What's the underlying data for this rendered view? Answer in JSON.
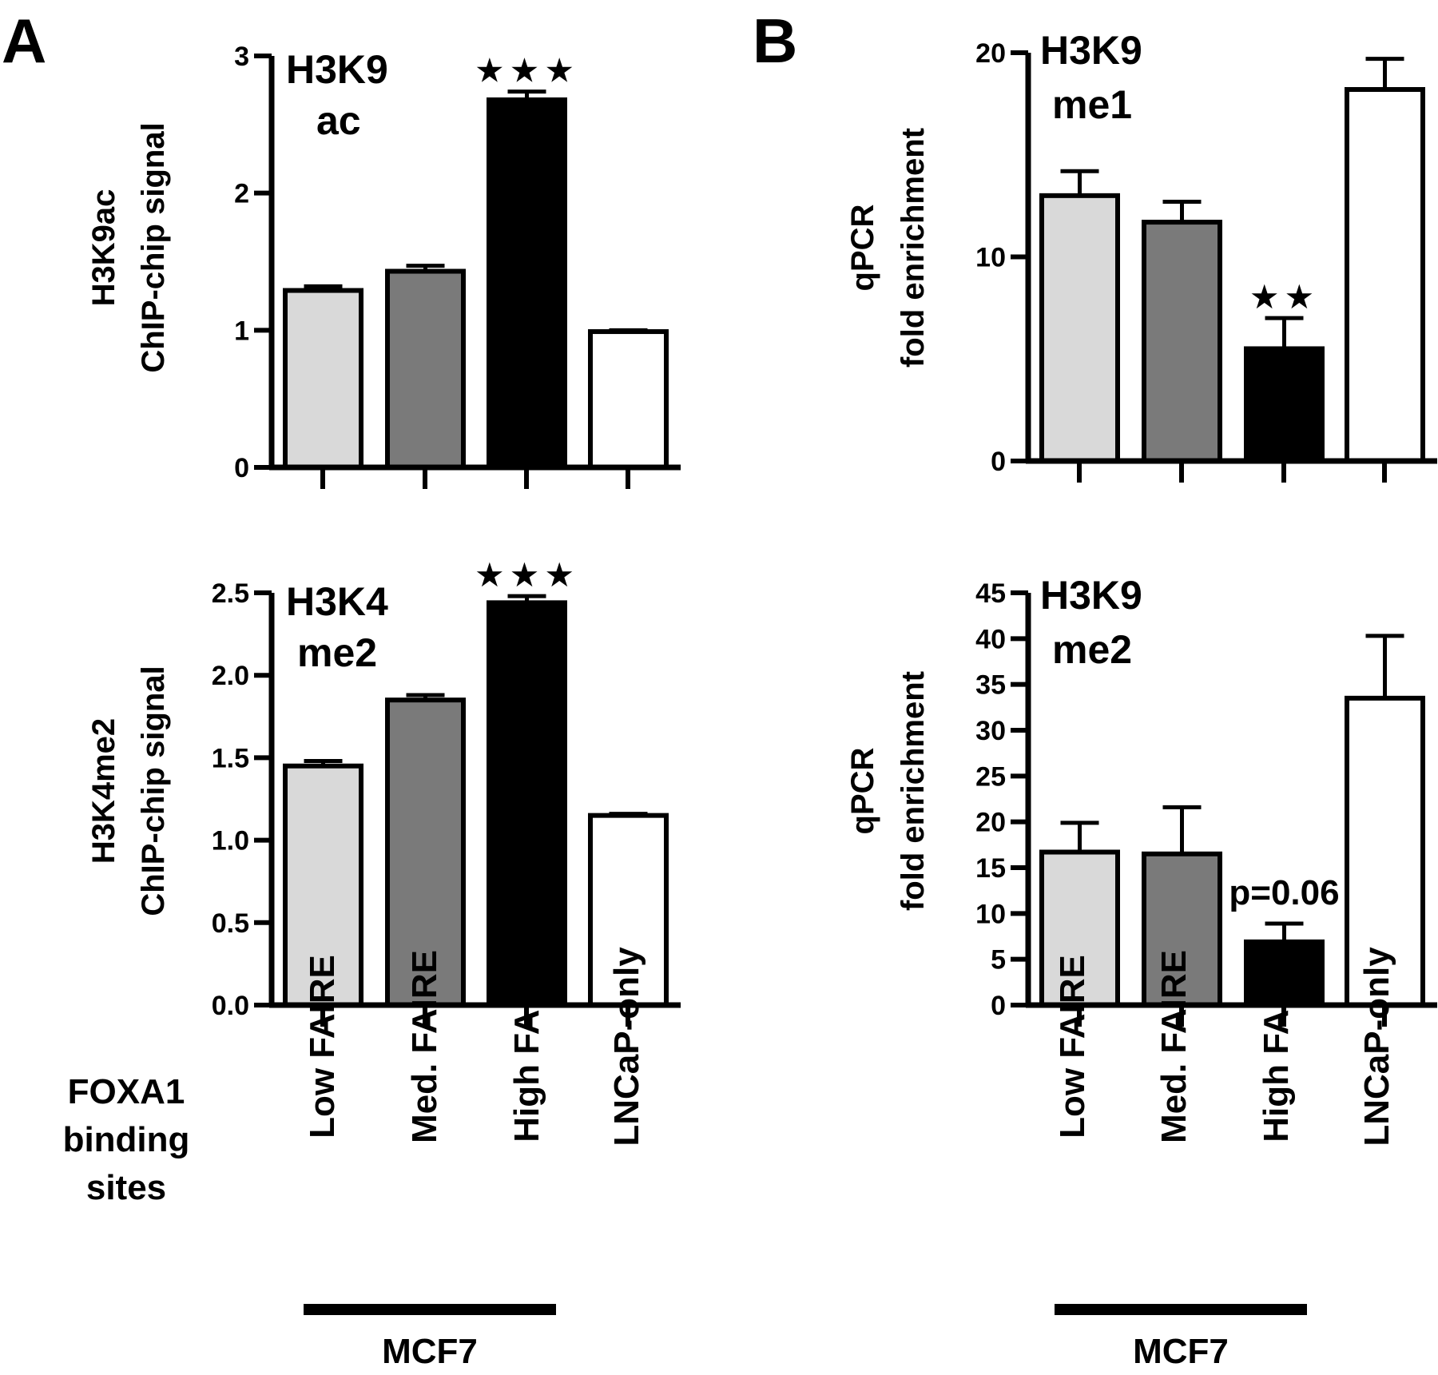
{
  "panels": {
    "A": {
      "letter": "A"
    },
    "B": {
      "letter": "B"
    }
  },
  "footer": {
    "row_label_lines": [
      "FOXA1",
      "binding",
      "sites"
    ],
    "categories": [
      "Low FAIRE",
      "Med. FAIRE",
      "High FAIRE",
      "LNCaP-only"
    ],
    "group_label": "MCF7"
  },
  "chart_data": [
    {
      "id": "A-top",
      "type": "bar",
      "inset_lines": [
        "H3K9",
        "ac"
      ],
      "ylabel_lines": [
        "H3K9ac",
        "ChIP-chip signal"
      ],
      "ylim": [
        0,
        3
      ],
      "yticks": [
        0,
        1,
        2,
        3
      ],
      "tick_labels": [
        "0",
        "1",
        "2",
        "3"
      ],
      "categories": [
        "Low FAIRE",
        "Med. FAIRE",
        "High FAIRE",
        "LNCaP-only"
      ],
      "values": [
        1.29,
        1.43,
        2.68,
        0.99
      ],
      "errors": [
        0.03,
        0.04,
        0.06,
        0.01
      ],
      "significance": [
        "",
        "",
        "★★★",
        ""
      ],
      "colors": [
        "#d9d9d9",
        "#7a7a7a",
        "#000000",
        "#ffffff"
      ]
    },
    {
      "id": "A-bottom",
      "type": "bar",
      "inset_lines": [
        "H3K4",
        "me2"
      ],
      "ylabel_lines": [
        "H3K4me2",
        "ChIP-chip signal"
      ],
      "ylim": [
        0,
        2.5
      ],
      "yticks": [
        0,
        0.5,
        1,
        1.5,
        2,
        2.5
      ],
      "tick_labels": [
        "0.0",
        "0.5",
        "1.0",
        "1.5",
        "2.0",
        "2.5"
      ],
      "categories": [
        "Low FAIRE",
        "Med. FAIRE",
        "High FAIRE",
        "LNCaP-only"
      ],
      "values": [
        1.45,
        1.85,
        2.44,
        1.15
      ],
      "errors": [
        0.03,
        0.03,
        0.04,
        0.01
      ],
      "significance": [
        "",
        "",
        "★★★",
        ""
      ],
      "colors": [
        "#d9d9d9",
        "#7a7a7a",
        "#000000",
        "#ffffff"
      ]
    },
    {
      "id": "B-top",
      "type": "bar",
      "inset_lines": [
        "H3K9",
        "me1"
      ],
      "ylabel_lines": [
        "qPCR",
        "fold enrichment"
      ],
      "ylim": [
        0,
        20
      ],
      "yticks": [
        0,
        10,
        20
      ],
      "tick_labels": [
        "0",
        "10",
        "20"
      ],
      "categories": [
        "Low FAIRE",
        "Med. FAIRE",
        "High FAIRE",
        "LNCaP-only"
      ],
      "values": [
        13.0,
        11.7,
        5.5,
        18.2
      ],
      "errors": [
        1.2,
        1.0,
        1.5,
        1.5
      ],
      "significance": [
        "",
        "",
        "★★",
        ""
      ],
      "colors": [
        "#d9d9d9",
        "#7a7a7a",
        "#000000",
        "#ffffff"
      ]
    },
    {
      "id": "B-bottom",
      "type": "bar",
      "inset_lines": [
        "H3K9",
        "me2"
      ],
      "ylabel_lines": [
        "qPCR",
        "fold enrichment"
      ],
      "ylim": [
        0,
        45
      ],
      "yticks": [
        0,
        5,
        10,
        15,
        20,
        25,
        30,
        35,
        40,
        45
      ],
      "tick_labels": [
        "0",
        "5",
        "10",
        "15",
        "20",
        "25",
        "30",
        "35",
        "40",
        "45"
      ],
      "categories": [
        "Low FAIRE",
        "Med. FAIRE",
        "High FAIRE",
        "LNCaP-only"
      ],
      "values": [
        16.7,
        16.5,
        6.9,
        33.5
      ],
      "errors": [
        3.2,
        5.1,
        2.0,
        6.8
      ],
      "significance": [
        "",
        "",
        "p=0.06",
        ""
      ],
      "colors": [
        "#d9d9d9",
        "#7a7a7a",
        "#000000",
        "#ffffff"
      ]
    }
  ]
}
